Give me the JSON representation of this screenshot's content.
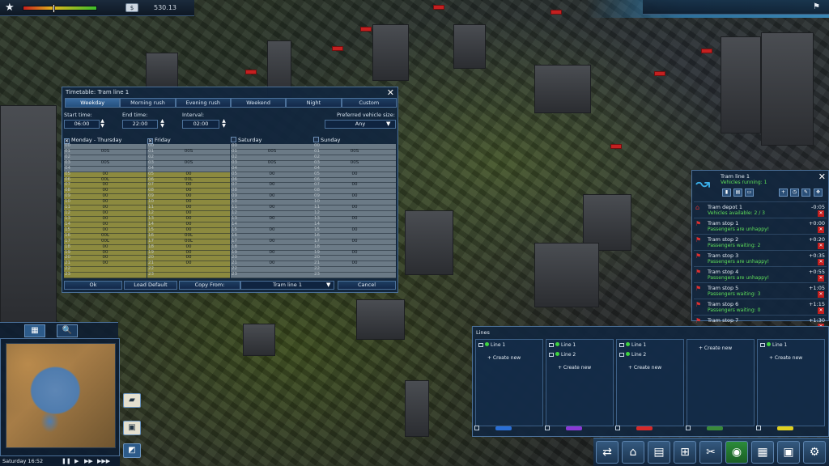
{
  "topbar": {
    "money": "530.13",
    "happiness_level_pct": 40
  },
  "timetable": {
    "title": "Timetable: Tram line 1",
    "tabs": [
      "Weekday",
      "Morning rush",
      "Evening rush",
      "Weekend",
      "Night",
      "Custom"
    ],
    "active_tab": "Weekday",
    "start_label": "Start time:",
    "start_value": "06:00",
    "end_label": "End time:",
    "end_value": "22:00",
    "interval_label": "Interval:",
    "interval_value": "02:00",
    "vehicle_size_label": "Preferred vehicle size:",
    "vehicle_size_value": "Any",
    "columns": [
      {
        "name": "Monday - Thursday",
        "checked": true,
        "minutes": [
          "",
          "00S",
          "",
          "00S",
          "",
          "00",
          "00L",
          "00",
          "00",
          "00",
          "00",
          "00",
          "00",
          "00",
          "00",
          "00",
          "00L",
          "00L",
          "00",
          "00",
          "00",
          "00",
          "",
          ""
        ],
        "highlight": [
          false,
          false,
          false,
          false,
          false,
          true,
          true,
          true,
          true,
          true,
          true,
          true,
          true,
          true,
          true,
          true,
          true,
          true,
          true,
          true,
          true,
          true,
          true,
          true
        ]
      },
      {
        "name": "Friday",
        "checked": true,
        "minutes": [
          "",
          "00S",
          "",
          "00S",
          "",
          "00",
          "00L",
          "00",
          "00",
          "00",
          "00",
          "00",
          "00",
          "00",
          "00",
          "00",
          "00L",
          "00L",
          "00",
          "00",
          "00",
          "00",
          "",
          ""
        ],
        "highlight": [
          false,
          false,
          false,
          false,
          false,
          true,
          true,
          true,
          true,
          true,
          true,
          true,
          true,
          true,
          true,
          true,
          true,
          true,
          true,
          true,
          true,
          true,
          true,
          true
        ]
      },
      {
        "name": "Saturday",
        "checked": false,
        "minutes": [
          "",
          "00S",
          "",
          "00S",
          "",
          "00",
          "",
          "00",
          "",
          "00",
          "",
          "00",
          "",
          "00",
          "",
          "00",
          "",
          "00",
          "",
          "00",
          "",
          "00",
          "",
          ""
        ],
        "highlight": [
          false,
          false,
          false,
          false,
          false,
          false,
          false,
          false,
          false,
          false,
          false,
          false,
          false,
          false,
          false,
          false,
          false,
          false,
          false,
          false,
          false,
          false,
          false,
          false
        ]
      },
      {
        "name": "Sunday",
        "checked": false,
        "minutes": [
          "",
          "00S",
          "",
          "00S",
          "",
          "00",
          "",
          "00",
          "",
          "00",
          "",
          "00",
          "",
          "00",
          "",
          "00",
          "",
          "00",
          "",
          "00",
          "",
          "00",
          "",
          ""
        ],
        "highlight": [
          false,
          false,
          false,
          false,
          false,
          false,
          false,
          false,
          false,
          false,
          false,
          false,
          false,
          false,
          false,
          false,
          false,
          false,
          false,
          false,
          false,
          false,
          false,
          false
        ]
      }
    ],
    "hours_col1": [
      "00",
      "01",
      "02",
      "03",
      "04",
      "05",
      "06",
      "07",
      "08",
      "09",
      "10",
      "11",
      "12",
      "13",
      "14",
      "15",
      "16",
      "17",
      "18",
      "19",
      "20",
      "21",
      "22",
      "23"
    ],
    "hours_col3": [
      "00",
      "01",
      "02",
      "03",
      "04",
      "05",
      "06",
      "07",
      "08",
      "09",
      "10",
      "11",
      "12",
      "13",
      "14",
      "15",
      "16",
      "17",
      "18",
      "19",
      "20",
      "21",
      "22",
      "23"
    ],
    "buttons": {
      "ok": "Ok",
      "load_default": "Load Default",
      "copy_from": "Copy From:",
      "copy_source": "Tram line 1",
      "cancel": "Cancel"
    }
  },
  "line_info": {
    "name": "Tram line 1",
    "vehicles_running": "Vehicles running: 1",
    "depot": {
      "name": "Tram depot 1",
      "status": "Vehicles available: 2 / 3",
      "time": "-0:05"
    },
    "stops": [
      {
        "name": "Tram stop 1",
        "time": "+0:00",
        "status": "Passengers are unhappy!"
      },
      {
        "name": "Tram stop 2",
        "time": "+0:20",
        "status": "Passengers waiting: 2"
      },
      {
        "name": "Tram stop 3",
        "time": "+0:35",
        "status": "Passengers are unhappy!"
      },
      {
        "name": "Tram stop 4",
        "time": "+0:55",
        "status": "Passengers are unhappy!"
      },
      {
        "name": "Tram stop 5",
        "time": "+1:05",
        "status": "Passengers waiting: 3"
      },
      {
        "name": "Tram stop 6",
        "time": "+1:15",
        "status": "Passengers waiting: 0"
      },
      {
        "name": "Tram stop 7",
        "time": "+1:30",
        "status": ""
      }
    ]
  },
  "lines_panel": {
    "title": "Lines",
    "columns": [
      {
        "entries": [
          "Line 1"
        ],
        "create": "+ Create new",
        "vehicle_color": "#2a6fd6"
      },
      {
        "entries": [
          "Line 1",
          "Line 2"
        ],
        "create": "+ Create new",
        "vehicle_color": "#8a3ad6"
      },
      {
        "entries": [
          "Line 1",
          "Line 2"
        ],
        "create": "+ Create new",
        "vehicle_color": "#d62a2a"
      },
      {
        "entries": [],
        "create": "+ Create new",
        "vehicle_color": "#3a8a3a"
      },
      {
        "entries": [
          "Line 1"
        ],
        "create": "+ Create new",
        "vehicle_color": "#e0d020"
      }
    ]
  },
  "clock": "Saturday 16:52",
  "toolbar_icons": [
    "routes-icon",
    "station-icon",
    "depot-icon",
    "bus-icon",
    "tools-icon",
    "tram-icon",
    "buildings-icon",
    "briefcase-icon",
    "gear-icon"
  ]
}
